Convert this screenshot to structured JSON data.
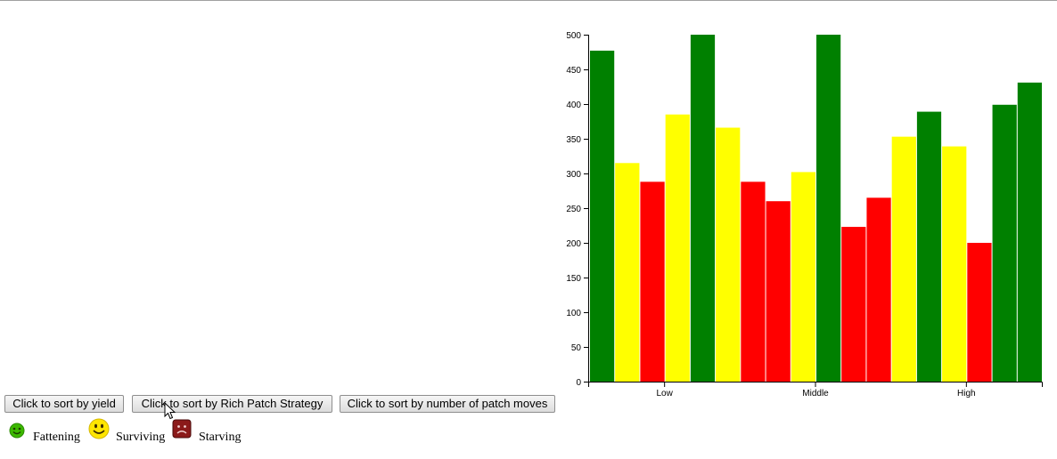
{
  "buttons": {
    "sort_yield": "Click to sort by yield",
    "sort_rich_patch": "Click to sort by Rich Patch Strategy",
    "sort_patch_moves": "Click to sort by number of patch moves"
  },
  "legend": [
    {
      "label": "Fattening",
      "icon": "green-smiley-icon",
      "color": "#3cb800"
    },
    {
      "label": "Surviving",
      "icon": "yellow-smiley-icon",
      "color": "#ffe600"
    },
    {
      "label": "Starving",
      "icon": "red-frowny-icon",
      "color": "#8b1a1a"
    }
  ],
  "chart_data": {
    "type": "bar",
    "ylim": [
      0,
      500
    ],
    "yticks": [
      0,
      50,
      100,
      150,
      200,
      250,
      300,
      350,
      400,
      450,
      500
    ],
    "group_labels": [
      "Low",
      "Middle",
      "High"
    ],
    "grid": false,
    "bars": [
      {
        "value": 477,
        "status": "Fattening"
      },
      {
        "value": 315,
        "status": "Surviving"
      },
      {
        "value": 288,
        "status": "Starving"
      },
      {
        "value": 385,
        "status": "Surviving"
      },
      {
        "value": 500,
        "status": "Fattening"
      },
      {
        "value": 366,
        "status": "Surviving"
      },
      {
        "value": 288,
        "status": "Starving"
      },
      {
        "value": 260,
        "status": "Starving"
      },
      {
        "value": 302,
        "status": "Surviving"
      },
      {
        "value": 500,
        "status": "Fattening"
      },
      {
        "value": 223,
        "status": "Starving"
      },
      {
        "value": 265,
        "status": "Starving"
      },
      {
        "value": 353,
        "status": "Surviving"
      },
      {
        "value": 389,
        "status": "Fattening"
      },
      {
        "value": 339,
        "status": "Surviving"
      },
      {
        "value": 200,
        "status": "Starving"
      },
      {
        "value": 399,
        "status": "Fattening"
      },
      {
        "value": 431,
        "status": "Fattening"
      }
    ],
    "status_colors": {
      "Fattening": "#008000",
      "Surviving": "#ffff00",
      "Starving": "#ff0000"
    }
  }
}
